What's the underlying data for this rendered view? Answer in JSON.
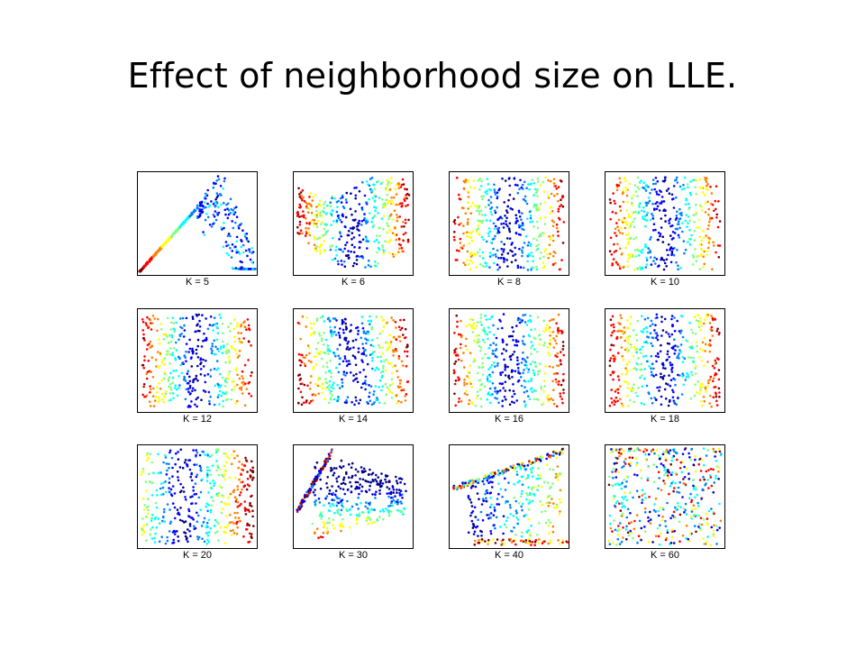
{
  "title": "Effect of neighborhood size on LLE.",
  "colormap": [
    "#00008f",
    "#0000ff",
    "#0080ff",
    "#00ffff",
    "#80ff80",
    "#ffff00",
    "#ff8000",
    "#ff0000",
    "#800000"
  ],
  "panels": [
    {
      "label": "K = 5",
      "shape": "tent"
    },
    {
      "label": "K = 6",
      "shape": "bowl"
    },
    {
      "label": "K = 8",
      "shape": "stripes-sym"
    },
    {
      "label": "K = 10",
      "shape": "stripes-sym"
    },
    {
      "label": "K = 12",
      "shape": "stripes-sym"
    },
    {
      "label": "K = 14",
      "shape": "stripes-tilt"
    },
    {
      "label": "K = 16",
      "shape": "stripes-sym"
    },
    {
      "label": "K = 18",
      "shape": "stripes-sym"
    },
    {
      "label": "K = 20",
      "shape": "stripes-asym"
    },
    {
      "label": "K = 30",
      "shape": "fold"
    },
    {
      "label": "K = 40",
      "shape": "wedge"
    },
    {
      "label": "K = 60",
      "shape": "noise"
    }
  ]
}
